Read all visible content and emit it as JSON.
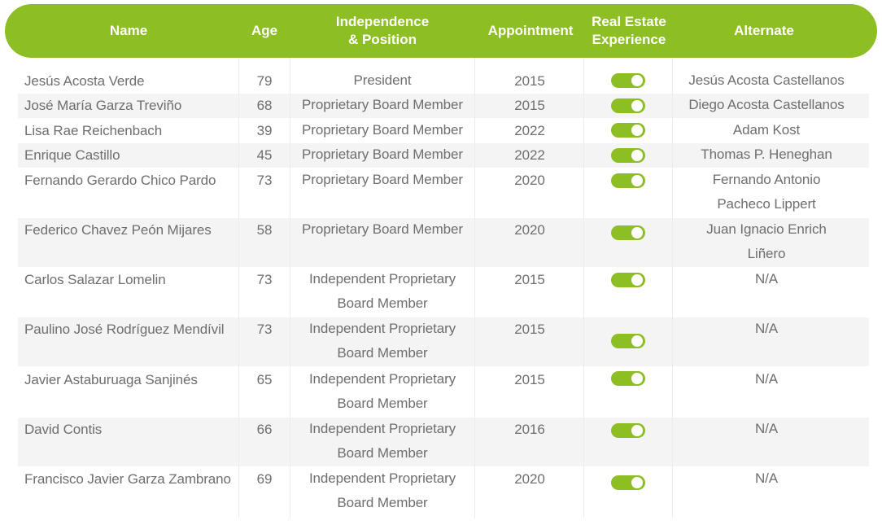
{
  "headers": {
    "name": "Name",
    "age": "Age",
    "position": "Independence\n& Position",
    "appointment": "Appointment",
    "real_estate": "Real Estate\nExperience",
    "alternate": "Alternate"
  },
  "toggle_color": "#8dbf24",
  "header_color": "#8dbf24",
  "rows": [
    {
      "name": "Jesús Acosta Verde",
      "age": "79",
      "position": [
        "President"
      ],
      "appointment": "2015",
      "real_estate": true,
      "alternate": [
        "Jesús Acosta Castellanos"
      ]
    },
    {
      "name": "José María Garza Treviño",
      "age": "68",
      "position": [
        "Proprietary Board Member"
      ],
      "appointment": "2015",
      "real_estate": true,
      "alternate": [
        "Diego Acosta Castellanos"
      ]
    },
    {
      "name": "Lisa Rae Reichenbach",
      "age": "39",
      "position": [
        "Proprietary Board Member"
      ],
      "appointment": "2022",
      "real_estate": true,
      "alternate": [
        "Adam Kost"
      ]
    },
    {
      "name": "Enrique Castillo",
      "age": "45",
      "position": [
        "Proprietary Board Member"
      ],
      "appointment": "2022",
      "real_estate": true,
      "alternate": [
        "Thomas P. Heneghan"
      ]
    },
    {
      "name": "Fernando Gerardo Chico Pardo",
      "age": "73",
      "position": [
        "Proprietary Board Member"
      ],
      "appointment": "2020",
      "real_estate": true,
      "alternate": [
        "Fernando Antonio",
        "Pacheco Lippert"
      ]
    },
    {
      "name": "Federico Chavez Peón Mijares",
      "age": "58",
      "position": [
        "Proprietary Board Member"
      ],
      "appointment": "2020",
      "real_estate": true,
      "alternate": [
        "Juan Ignacio Enrich",
        "Liñero"
      ]
    },
    {
      "name": "Carlos Salazar Lomelin",
      "age": "73",
      "position": [
        "Independent Proprietary",
        "Board Member"
      ],
      "appointment": "2015",
      "real_estate": true,
      "alternate": [
        "N/A"
      ]
    },
    {
      "name": "Paulino José Rodríguez Mendívil",
      "age": "73",
      "position": [
        "Independent Proprietary",
        "Board Member"
      ],
      "appointment": "2015",
      "real_estate": true,
      "alternate": [
        "N/A"
      ]
    },
    {
      "name": "Javier Astaburuaga Sanjinés",
      "age": "65",
      "position": [
        "Independent Proprietary",
        "Board Member"
      ],
      "appointment": "2015",
      "real_estate": true,
      "alternate": [
        "N/A"
      ]
    },
    {
      "name": "David Contis",
      "age": "66",
      "position": [
        "Independent Proprietary",
        "Board Member"
      ],
      "appointment": "2016",
      "real_estate": true,
      "alternate": [
        "N/A"
      ]
    },
    {
      "name": "Francisco Javier Garza Zambrano",
      "age": "69",
      "position": [
        "Independent Proprietary",
        "Board Member"
      ],
      "appointment": "2020",
      "real_estate": true,
      "alternate": [
        "N/A"
      ]
    }
  ]
}
